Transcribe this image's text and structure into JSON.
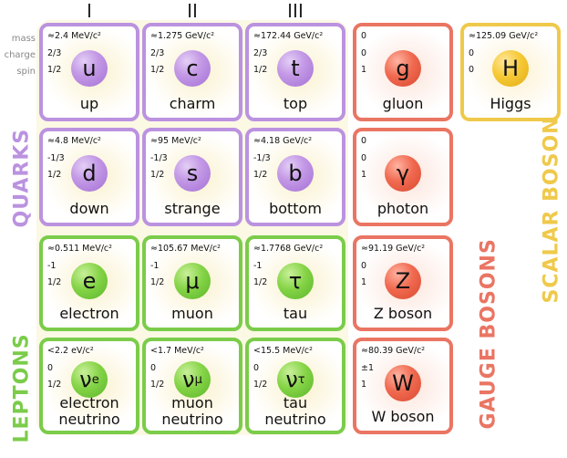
{
  "generations": [
    "I",
    "II",
    "III"
  ],
  "row_labels": [
    "mass",
    "charge",
    "spin"
  ],
  "side_labels": {
    "quarks": "QUARKS",
    "leptons": "LEPTONS",
    "gauge": "GAUGE BOSONS",
    "scalar": "SCALAR BOSONS"
  },
  "colors": {
    "quarks": "#bb92e0",
    "leptons": "#7bcc4a",
    "gauge": "#ea7563",
    "scalar": "#efc94a"
  },
  "particles": {
    "up": {
      "mass": "≈2.4 MeV/c²",
      "charge": "2/3",
      "spin": "1/2",
      "symbol": "u",
      "name": "up"
    },
    "charm": {
      "mass": "≈1.275 GeV/c²",
      "charge": "2/3",
      "spin": "1/2",
      "symbol": "c",
      "name": "charm"
    },
    "top": {
      "mass": "≈172.44 GeV/c²",
      "charge": "2/3",
      "spin": "1/2",
      "symbol": "t",
      "name": "top"
    },
    "gluon": {
      "mass": "0",
      "charge": "0",
      "spin": "1",
      "symbol": "g",
      "name": "gluon"
    },
    "higgs": {
      "mass": "≈125.09 GeV/c²",
      "charge": "0",
      "spin": "0",
      "symbol": "H",
      "name": "Higgs"
    },
    "down": {
      "mass": "≈4.8 MeV/c²",
      "charge": "-1/3",
      "spin": "1/2",
      "symbol": "d",
      "name": "down"
    },
    "strange": {
      "mass": "≈95 MeV/c²",
      "charge": "-1/3",
      "spin": "1/2",
      "symbol": "s",
      "name": "strange"
    },
    "bottom": {
      "mass": "≈4.18 GeV/c²",
      "charge": "-1/3",
      "spin": "1/2",
      "symbol": "b",
      "name": "bottom"
    },
    "photon": {
      "mass": "0",
      "charge": "0",
      "spin": "1",
      "symbol": "γ",
      "name": "photon"
    },
    "electron": {
      "mass": "≈0.511 MeV/c²",
      "charge": "-1",
      "spin": "1/2",
      "symbol": "e",
      "name": "electron"
    },
    "muon": {
      "mass": "≈105.67 MeV/c²",
      "charge": "-1",
      "spin": "1/2",
      "symbol": "μ",
      "name": "muon"
    },
    "tau": {
      "mass": "≈1.7768 GeV/c²",
      "charge": "-1",
      "spin": "1/2",
      "symbol": "τ",
      "name": "tau"
    },
    "zboson": {
      "mass": "≈91.19 GeV/c²",
      "charge": "0",
      "spin": "1",
      "symbol": "Z",
      "name": "Z boson"
    },
    "enu": {
      "mass": "<2.2 eV/c²",
      "charge": "0",
      "spin": "1/2",
      "symbol": "ν",
      "sub": "e",
      "name": "electron\nneutrino"
    },
    "munu": {
      "mass": "<1.7 MeV/c²",
      "charge": "0",
      "spin": "1/2",
      "symbol": "ν",
      "sub": "μ",
      "name": "muon\nneutrino"
    },
    "taunu": {
      "mass": "<15.5 MeV/c²",
      "charge": "0",
      "spin": "1/2",
      "symbol": "ν",
      "sub": "τ",
      "name": "tau\nneutrino"
    },
    "wboson": {
      "mass": "≈80.39 GeV/c²",
      "charge": "±1",
      "spin": "1",
      "symbol": "W",
      "name": "W boson"
    }
  }
}
